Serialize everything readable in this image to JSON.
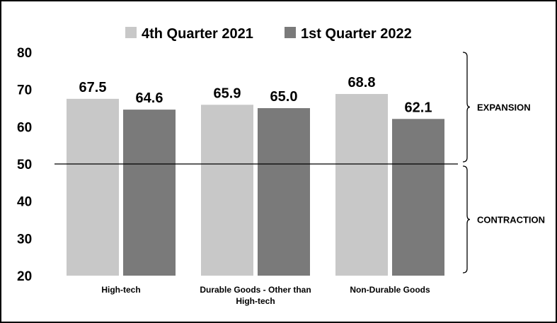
{
  "chart_data": {
    "type": "bar",
    "title": "",
    "xlabel": "",
    "ylabel": "",
    "ylim": [
      20,
      80
    ],
    "yticks": [
      80,
      70,
      60,
      50,
      40,
      30,
      20
    ],
    "grid": false,
    "legend_position": "top-center",
    "categories": [
      "High-tech",
      "Durable Goods - Other than High-tech",
      "Non-Durable Goods"
    ],
    "category_lines": [
      [
        "High-tech"
      ],
      [
        "Durable Goods - Other than",
        "High-tech"
      ],
      [
        "Non-Durable Goods"
      ]
    ],
    "series": [
      {
        "name": "4th Quarter 2021",
        "color": "#c8c8c8",
        "values": [
          67.5,
          65.9,
          68.8
        ],
        "labels": [
          "67.5",
          "65.9",
          "68.8"
        ]
      },
      {
        "name": "1st Quarter 2022",
        "color": "#7a7a7a",
        "values": [
          64.6,
          65.0,
          62.1
        ],
        "labels": [
          "64.6",
          "65.0",
          "62.1"
        ]
      }
    ],
    "reference_line": {
      "value": 50
    },
    "annotations": [
      {
        "label": "EXPANSION",
        "from": 80,
        "to": 50
      },
      {
        "label": "CONTRACTION",
        "from": 50,
        "to": 20
      }
    ]
  }
}
